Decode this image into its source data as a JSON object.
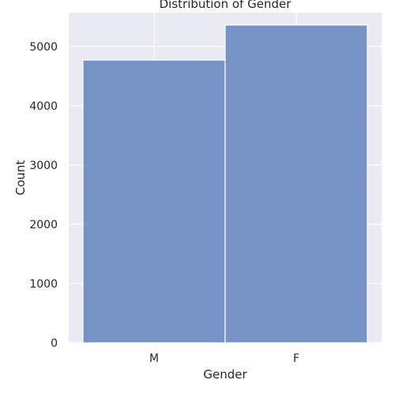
{
  "chart_data": {
    "type": "bar",
    "title": "Distribution of Gender",
    "xlabel": "Gender",
    "ylabel": "Count",
    "categories": [
      "M",
      "F"
    ],
    "values": [
      4770,
      5360
    ],
    "ylim": [
      0,
      5570
    ],
    "yticks": [
      0,
      1000,
      2000,
      3000,
      4000,
      5000
    ],
    "ytick_labels": [
      "0",
      "1000",
      "2000",
      "3000",
      "4000",
      "5000"
    ],
    "grid": true,
    "colors": {
      "plot_background": "#EAEAF2",
      "grid": "#FFFFFF",
      "bar_fill": "#6A8AC0",
      "bar_edge": "#FFFFFF"
    }
  }
}
